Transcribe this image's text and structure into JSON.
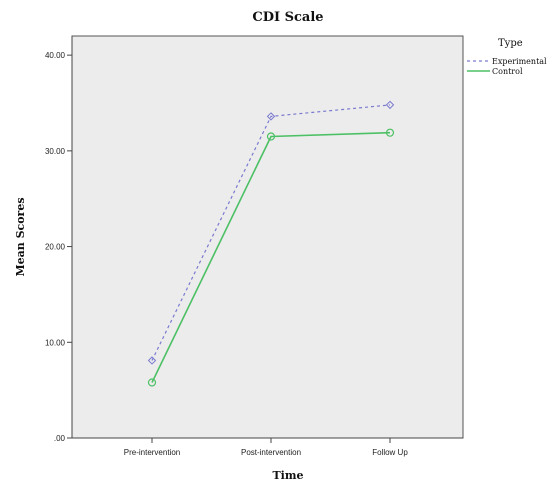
{
  "chart_data": {
    "type": "line",
    "title": "CDI Scale",
    "xlabel": "Time",
    "ylabel": "Mean Scores",
    "categories": [
      "Pre-intervention",
      "Post-intervention",
      "Follow Up"
    ],
    "ylim": [
      0,
      42
    ],
    "yticks": [
      0,
      10,
      20,
      30,
      40
    ],
    "ytick_labels": [
      ".00",
      "10.00",
      "20.00",
      "30.00",
      "40.00"
    ],
    "grid": false,
    "legend": {
      "title": "Type",
      "placement": "right"
    },
    "series": [
      {
        "name": "Experimental",
        "values": [
          8.1,
          33.6,
          34.8
        ],
        "color": "#7a7ad0",
        "dash": "dashed",
        "marker": "diamond"
      },
      {
        "name": "Control",
        "values": [
          5.8,
          31.5,
          31.9
        ],
        "color": "#4cc064",
        "dash": "solid",
        "marker": "circle"
      }
    ],
    "plot_background": "#ececec"
  }
}
